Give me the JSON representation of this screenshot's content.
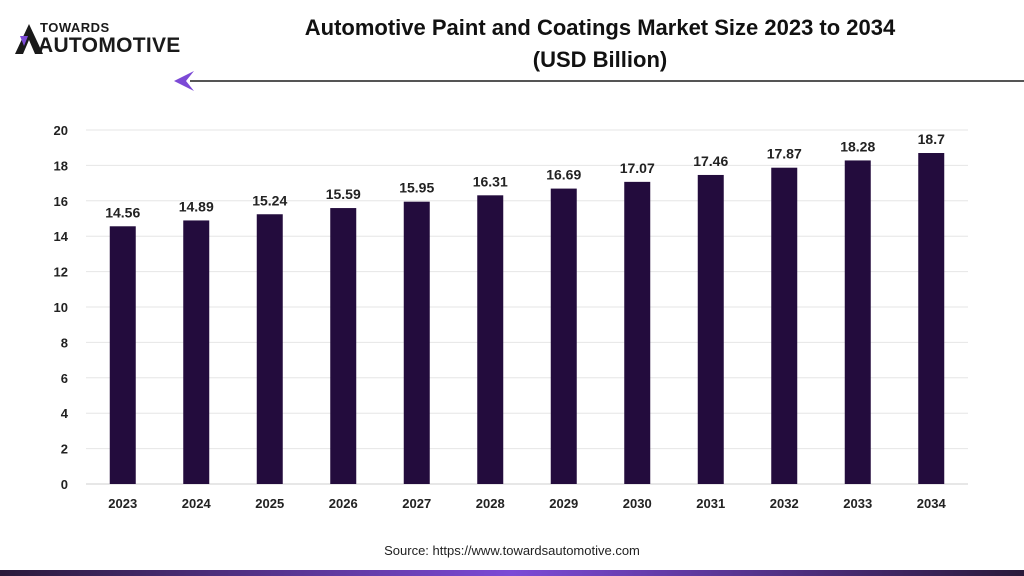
{
  "brand": {
    "line1": "TOWARDS",
    "line2": "AUTOMOTIVE"
  },
  "colors": {
    "bar": "#230c3d",
    "accent": "#7c4ad6",
    "grid": "#e6e6e6"
  },
  "source_text": "Source: https://www.towardsautomotive.com",
  "chart_data": {
    "type": "bar",
    "title": "Automotive Paint and Coatings Market Size 2023 to 2034",
    "subtitle": "(USD Billion)",
    "xlabel": "",
    "ylabel": "",
    "categories": [
      "2023",
      "2024",
      "2025",
      "2026",
      "2027",
      "2028",
      "2029",
      "2030",
      "2031",
      "2032",
      "2033",
      "2034"
    ],
    "values": [
      14.56,
      14.89,
      15.24,
      15.59,
      15.95,
      16.31,
      16.69,
      17.07,
      17.46,
      17.87,
      18.28,
      18.7
    ],
    "data_labels": [
      "14.56",
      "14.89",
      "15.24",
      "15.59",
      "15.95",
      "16.31",
      "16.69",
      "17.07",
      "17.46",
      "17.87",
      "18.28",
      "18.7"
    ],
    "ylim": [
      0,
      20
    ],
    "yticks": [
      0,
      2,
      4,
      6,
      8,
      10,
      12,
      14,
      16,
      18,
      20
    ],
    "grid": true,
    "legend": "none"
  }
}
